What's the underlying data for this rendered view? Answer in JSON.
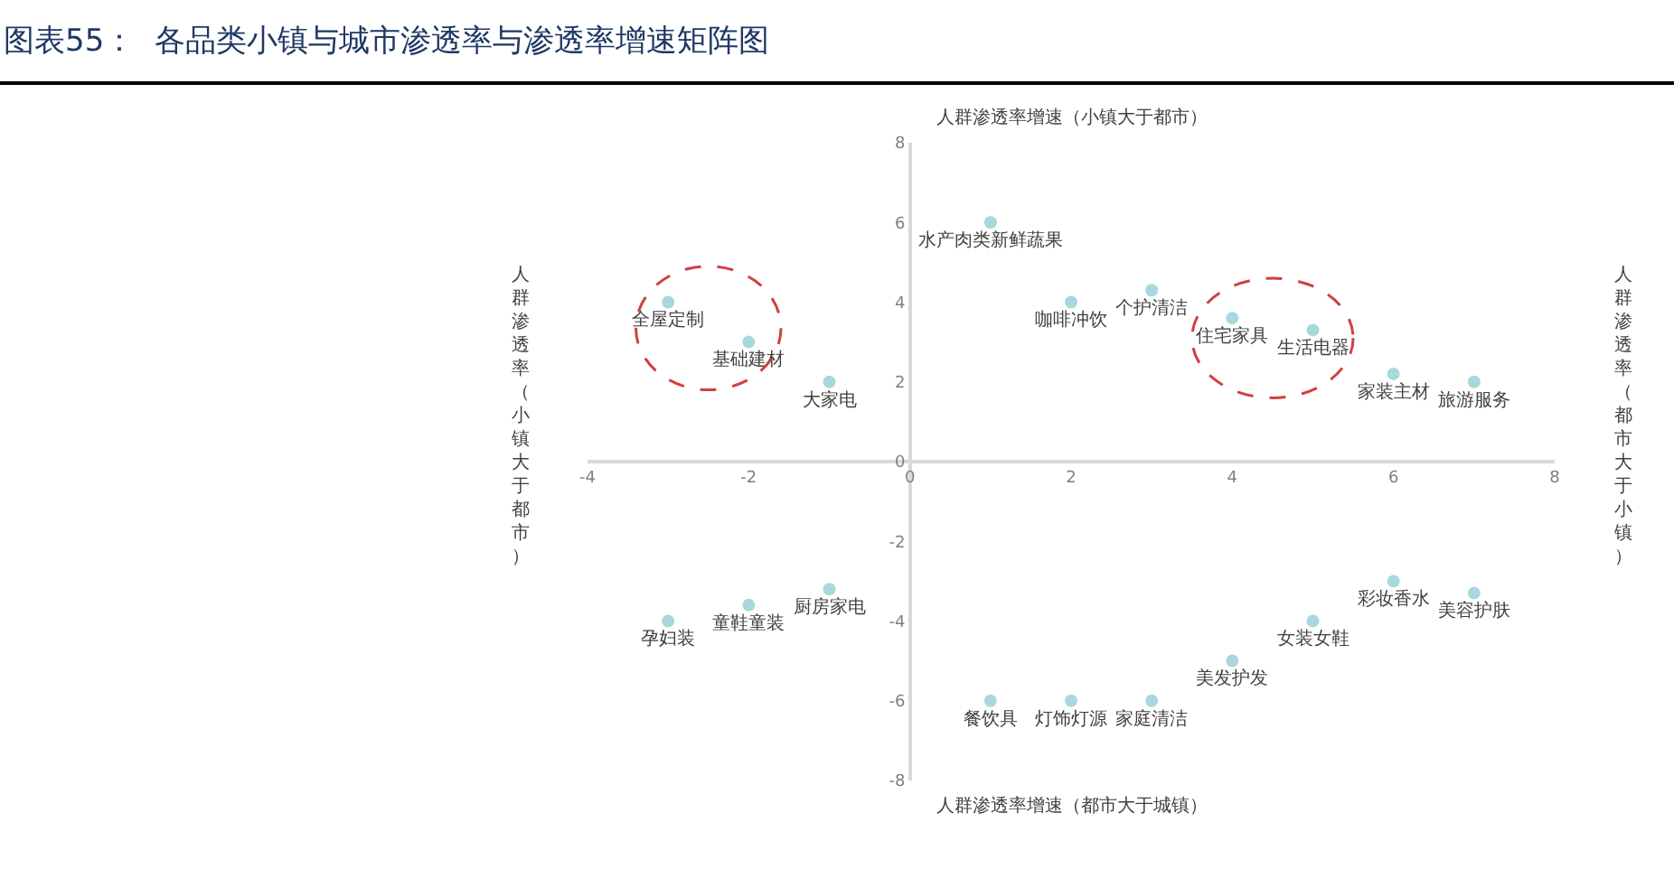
{
  "chart_data": {
    "type": "scatter",
    "title": "图表55：  各品类小镇与城市渗透率与渗透率增速矩阵图",
    "annotations": [
      "人群渗透率增速（小镇大于都市）",
      "人群渗透率增速（都市大于城镇）",
      "人群渗透率（小镇大于都市）",
      "人群渗透率（都市大于小镇）"
    ],
    "xlim": [
      -4,
      8
    ],
    "xticks": [
      -4,
      -2,
      0,
      2,
      4,
      6,
      8
    ],
    "ylim": [
      -8,
      8
    ],
    "yticks": [
      -8,
      -6,
      -4,
      -2,
      0,
      2,
      4,
      6,
      8
    ],
    "grid": false,
    "legend": false,
    "marker": "circle",
    "series": [
      {
        "name": "全屋定制",
        "color": "#a9d8dc",
        "x": [
          -3
        ],
        "values": [
          4
        ]
      },
      {
        "name": "基础建材",
        "color": "#a9d8dc",
        "x": [
          -2
        ],
        "values": [
          3
        ]
      },
      {
        "name": "大家电",
        "color": "#a9d8dc",
        "x": [
          -1
        ],
        "values": [
          2
        ]
      },
      {
        "name": "水产肉类新鲜蔬果",
        "color": "#a9d8dc",
        "x": [
          1
        ],
        "values": [
          6
        ]
      },
      {
        "name": "咖啡冲饮",
        "color": "#a9d8dc",
        "x": [
          2
        ],
        "values": [
          4
        ]
      },
      {
        "name": "个护清洁",
        "color": "#a9d8dc",
        "x": [
          3
        ],
        "values": [
          4.3
        ]
      },
      {
        "name": "住宅家具",
        "color": "#a9d8dc",
        "x": [
          4
        ],
        "values": [
          3.6
        ]
      },
      {
        "name": "生活电器",
        "color": "#a9d8dc",
        "x": [
          5
        ],
        "values": [
          3.3
        ]
      },
      {
        "name": "家装主材",
        "color": "#a9d8dc",
        "x": [
          6
        ],
        "values": [
          2.2
        ]
      },
      {
        "name": "旅游服务",
        "color": "#a9d8dc",
        "x": [
          7
        ],
        "values": [
          2
        ]
      },
      {
        "name": "孕妇装",
        "color": "#a9d8dc",
        "x": [
          -3
        ],
        "values": [
          -4
        ]
      },
      {
        "name": "童鞋童装",
        "color": "#a9d8dc",
        "x": [
          -2
        ],
        "values": [
          -3.6
        ]
      },
      {
        "name": "厨房家电",
        "color": "#a9d8dc",
        "x": [
          -1
        ],
        "values": [
          -3.2
        ]
      },
      {
        "name": "餐饮具",
        "color": "#a9d8dc",
        "x": [
          1
        ],
        "values": [
          -6
        ]
      },
      {
        "name": "灯饰灯源",
        "color": "#a9d8dc",
        "x": [
          2
        ],
        "values": [
          -6
        ]
      },
      {
        "name": "家庭清洁",
        "color": "#a9d8dc",
        "x": [
          3
        ],
        "values": [
          -6
        ]
      },
      {
        "name": "美发护发",
        "color": "#a9d8dc",
        "x": [
          4
        ],
        "values": [
          -5
        ]
      },
      {
        "name": "女装女鞋",
        "color": "#a9d8dc",
        "x": [
          5
        ],
        "values": [
          -4
        ]
      },
      {
        "name": "彩妆香水",
        "color": "#a9d8dc",
        "x": [
          6
        ],
        "values": [
          -3
        ]
      },
      {
        "name": "美容护肤",
        "color": "#a9d8dc",
        "x": [
          7
        ],
        "values": [
          -3.3
        ]
      }
    ]
  }
}
